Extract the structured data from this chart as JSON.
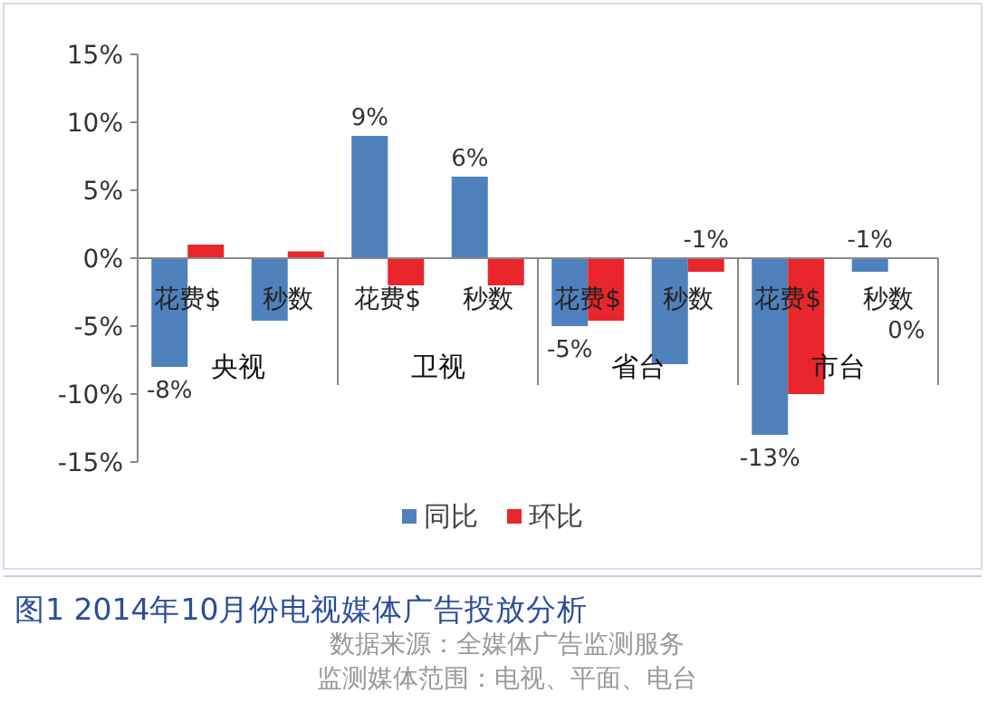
{
  "chart_data": {
    "type": "bar",
    "title": "图1 2014年10月份电视媒体广告投放分析",
    "categories": [
      "花费$",
      "秒数",
      "花费$",
      "秒数",
      "花费$",
      "秒数",
      "花费$",
      "秒数"
    ],
    "series": [
      {
        "name": "同比",
        "color": "#4f81bd",
        "values": [
          -8,
          -4.6,
          9,
          6,
          -5,
          -7.8,
          -13,
          -1
        ],
        "value_labels": [
          "-8%",
          null,
          "9%",
          "6%",
          "-5%",
          null,
          "-13%",
          "-1%"
        ]
      },
      {
        "name": "环比",
        "color": "#e8262b",
        "values": [
          1,
          0.5,
          -2,
          -2,
          -4.6,
          -1,
          -10,
          0
        ],
        "value_labels": [
          null,
          null,
          null,
          null,
          null,
          "-1%",
          null,
          "0%"
        ]
      }
    ],
    "ylim": [
      -15,
      15
    ],
    "yticks": [
      {
        "value": -15,
        "label": "-15%"
      },
      {
        "value": -10,
        "label": "-10%"
      },
      {
        "value": -5,
        "label": "-5%"
      },
      {
        "value": 0,
        "label": "0%"
      },
      {
        "value": 5,
        "label": "5%"
      },
      {
        "value": 10,
        "label": "10%"
      },
      {
        "value": 15,
        "label": "15%"
      }
    ],
    "legend": "bottom",
    "annotations": [
      "央视",
      "卫视",
      "省台",
      "市台",
      "数据来源：全媒体广告监测服务",
      "监测媒体范围：电视、平面、电台"
    ]
  }
}
